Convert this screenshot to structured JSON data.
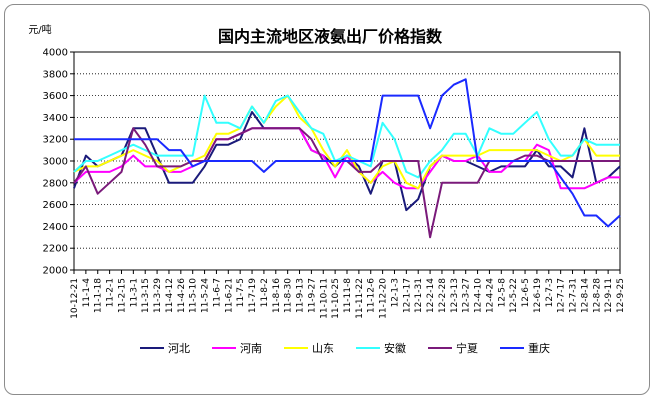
{
  "chart_data": {
    "type": "line",
    "title": "国内主流地区液氨出厂价格指数",
    "ylabel": "元/吨",
    "xlabel": "",
    "ylim": [
      2000,
      4000
    ],
    "yticks": [
      2000,
      2200,
      2400,
      2600,
      2800,
      3000,
      3200,
      3400,
      3600,
      3800,
      4000
    ],
    "grid": true,
    "legend_position": "bottom",
    "categories": [
      "10-12-21",
      "11-1-4",
      "11-1-18",
      "11-2-1",
      "11-2-15",
      "11-3-1",
      "11-3-15",
      "11-3-29",
      "11-4-12",
      "11-4-26",
      "11-5-10",
      "11-5-24",
      "11-6-7",
      "11-6-21",
      "11-7-5",
      "11-7-19",
      "11-8-2",
      "11-8-16",
      "11-8-30",
      "11-9-13",
      "11-9-27",
      "11-10-11",
      "11-10-25",
      "11-11-8",
      "11-11-22",
      "11-12-6",
      "11-12-20",
      "12-1-3",
      "12-1-17",
      "12-1-31",
      "12-2-14",
      "12-2-28",
      "12-3-13",
      "12-3-27",
      "12-4-10",
      "12-4-24",
      "12-5-8",
      "12-5-22",
      "12-6-5",
      "12-6-19",
      "12-7-3",
      "12-7-17",
      "12-7-31",
      "12-8-14",
      "12-8-28",
      "12-9-11",
      "12-9-25"
    ],
    "series": [
      {
        "name": "河北",
        "color": "#1a1a7a",
        "values": [
          2750,
          3050,
          2950,
          3000,
          3050,
          3300,
          3300,
          3050,
          2800,
          2800,
          2800,
          2950,
          3150,
          3150,
          3200,
          3450,
          3300,
          3300,
          3300,
          3300,
          3100,
          3050,
          2950,
          3050,
          2950,
          2700,
          3000,
          3000,
          2550,
          2650,
          2950,
          3050,
          3000,
          3000,
          2950,
          2900,
          2950,
          2950,
          2950,
          3100,
          2950,
          2950,
          2850,
          3300,
          2800,
          2850,
          2950
        ]
      },
      {
        "name": "河南",
        "color": "#ff00ff",
        "values": [
          2800,
          2900,
          2900,
          2900,
          2950,
          3050,
          2950,
          2950,
          2900,
          2900,
          2950,
          3000,
          3200,
          3200,
          3250,
          3300,
          3300,
          3300,
          3300,
          3300,
          3100,
          3050,
          2850,
          3050,
          2900,
          2800,
          2900,
          2800,
          2750,
          2750,
          2900,
          3050,
          3000,
          3000,
          3050,
          2900,
          2900,
          3000,
          3000,
          3150,
          3100,
          2750,
          2750,
          2750,
          2800,
          2850,
          2850
        ]
      },
      {
        "name": "山东",
        "color": "#ffff00",
        "values": [
          2900,
          2950,
          2950,
          3000,
          3050,
          3100,
          3050,
          3000,
          2900,
          2950,
          3000,
          3050,
          3250,
          3250,
          3300,
          3500,
          3350,
          3500,
          3600,
          3400,
          3300,
          3100,
          2950,
          3100,
          2900,
          2800,
          2950,
          3000,
          2800,
          2750,
          2950,
          3050,
          3050,
          3050,
          3050,
          3100,
          3100,
          3100,
          3100,
          3100,
          3050,
          3000,
          3050,
          3200,
          3050,
          3050,
          3050
        ]
      },
      {
        "name": "安徽",
        "color": "#33ffff",
        "values": [
          2900,
          3000,
          3000,
          3050,
          3100,
          3150,
          3100,
          3050,
          3050,
          3050,
          3050,
          3600,
          3350,
          3350,
          3300,
          3500,
          3350,
          3550,
          3600,
          3450,
          3300,
          3250,
          3000,
          3050,
          3000,
          2950,
          3350,
          3200,
          2900,
          2850,
          3000,
          3100,
          3250,
          3250,
          3050,
          3300,
          3250,
          3250,
          3350,
          3450,
          3200,
          3050,
          3050,
          3200,
          3150,
          3150,
          3150
        ]
      },
      {
        "name": "宁夏",
        "color": "#7a1a7a",
        "values": [
          2800,
          2950,
          2700,
          2800,
          2900,
          3300,
          3150,
          2950,
          2950,
          2950,
          3000,
          3000,
          3200,
          3200,
          3250,
          3300,
          3300,
          3300,
          3300,
          3300,
          3200,
          3000,
          3000,
          3000,
          2900,
          2900,
          3000,
          3000,
          3000,
          3000,
          2300,
          2800,
          2800,
          2800,
          2800,
          3000,
          3000,
          3000,
          3050,
          3050,
          3000,
          3000,
          3000,
          3000,
          3000,
          3000,
          3000
        ]
      },
      {
        "name": "重庆",
        "color": "#1a2aff",
        "values": [
          3200,
          3200,
          3200,
          3200,
          3200,
          3200,
          3200,
          3200,
          3100,
          3100,
          2950,
          3000,
          3000,
          3000,
          3000,
          3000,
          2900,
          3000,
          3000,
          3000,
          3000,
          3000,
          3000,
          3000,
          3000,
          3000,
          3600,
          3600,
          3600,
          3600,
          3300,
          3600,
          3700,
          3750,
          3000,
          3000,
          3000,
          3000,
          3000,
          3000,
          3000,
          2850,
          2700,
          2500,
          2500,
          2400,
          2500
        ]
      }
    ]
  }
}
